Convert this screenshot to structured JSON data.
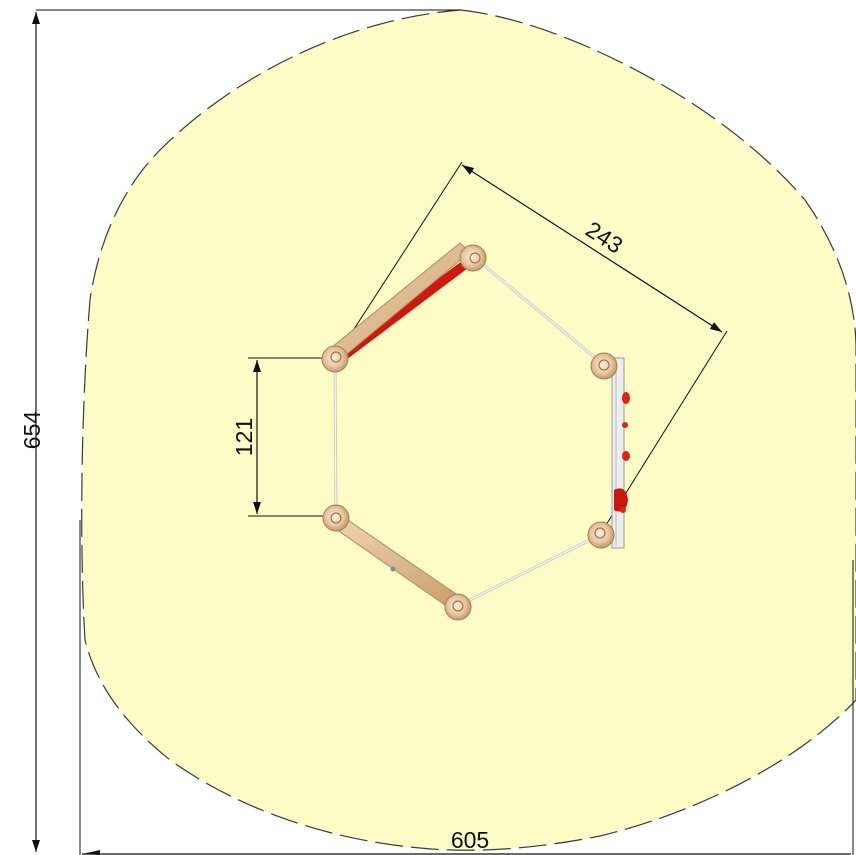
{
  "drawing": {
    "dimensions": {
      "overall_height": "654",
      "overall_width": "605",
      "side_length": "243",
      "post_spacing": "121"
    },
    "colors": {
      "safety_zone_fill": "#fdfcc6",
      "safety_zone_border": "#3a3a3a",
      "post_wood": "#e6c39a",
      "post_shadow": "#b88e60",
      "rope": "#d8d4cc",
      "slide_accent": "#cc1a10",
      "dimension_line": "#111111"
    }
  }
}
